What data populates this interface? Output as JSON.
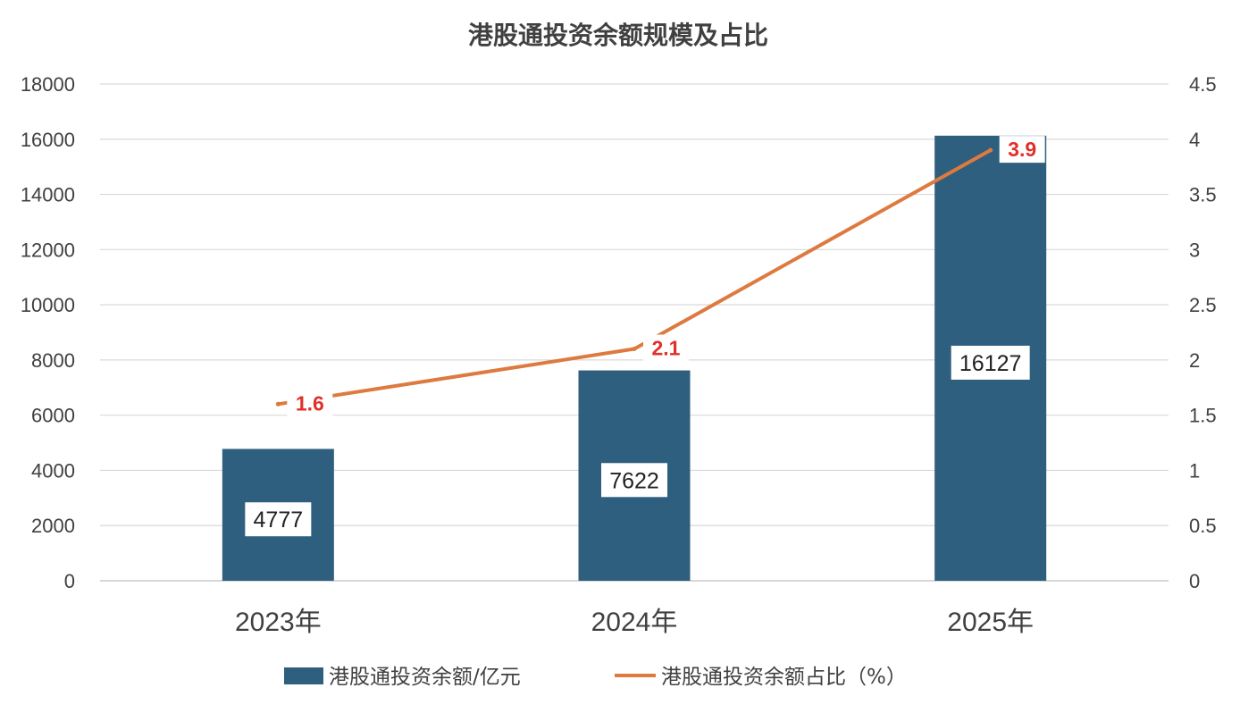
{
  "chart_data": {
    "type": "bar",
    "title": "港股通投资余额规模及占比",
    "categories": [
      "2023年",
      "2024年",
      "2025年"
    ],
    "series": [
      {
        "name": "港股通投资余额/亿元",
        "type": "bar",
        "axis": "left",
        "values": [
          4777,
          7622,
          16127
        ],
        "color": "#2e5f7f"
      },
      {
        "name": "港股通投资余额占比（%）",
        "type": "line",
        "axis": "right",
        "values": [
          1.6,
          2.1,
          3.9
        ],
        "color": "#dd7a3f",
        "label_color": "#e0302a"
      }
    ],
    "y_left": {
      "ylim": [
        0,
        18000
      ],
      "ticks": [
        "0",
        "2000",
        "4000",
        "6000",
        "8000",
        "10000",
        "12000",
        "14000",
        "16000",
        "18000"
      ]
    },
    "y_right": {
      "ylim": [
        0,
        4.5
      ],
      "ticks": [
        "0",
        "0.5",
        "1",
        "1.5",
        "2",
        "2.5",
        "3",
        "3.5",
        "4",
        "4.5"
      ]
    },
    "grid": true,
    "legend_position": "bottom"
  }
}
